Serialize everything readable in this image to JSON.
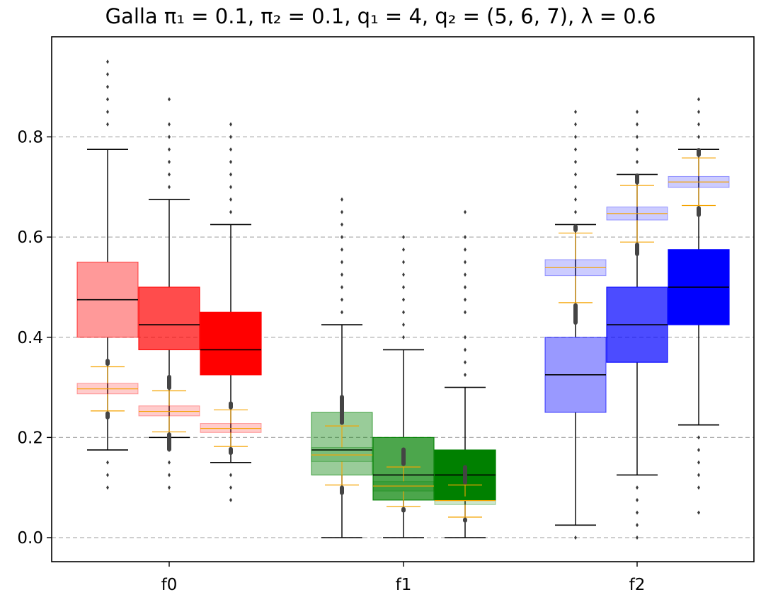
{
  "title": "Galla π₁ = 0.1,  π₂ = 0.1,  q₁ = 4,  q₂ = (5, 6, 7),  λ = 0.6",
  "chart_data": {
    "type": "box",
    "title": "Galla π₁ = 0.1,  π₂ = 0.1,  q₁ = 4,  q₂ = (5, 6, 7),  λ = 0.6",
    "xlabel": "",
    "ylabel": "",
    "categories": [
      "f0",
      "f1",
      "f2"
    ],
    "ylim": [
      -0.047,
      1.0
    ],
    "yticks": [
      0.0,
      0.2,
      0.4,
      0.6,
      0.8
    ],
    "ytick_labels": [
      "0.0",
      "0.2",
      "0.4",
      "0.6",
      "0.8"
    ],
    "grid": "horizontal dashed",
    "main_boxes": [
      {
        "category": "f0",
        "offset": -1,
        "color": "#ff0000",
        "alpha": 0.4,
        "whisker_low": 0.175,
        "q1": 0.4,
        "median": 0.475,
        "q3": 0.55,
        "whisker_high": 0.775,
        "outliers": [
          0.1,
          0.125,
          0.15,
          0.825,
          0.85,
          0.875,
          0.9,
          0.925,
          0.95
        ]
      },
      {
        "category": "f0",
        "offset": 0,
        "color": "#ff0000",
        "alpha": 0.7,
        "whisker_low": 0.2,
        "q1": 0.375,
        "median": 0.425,
        "q3": 0.5,
        "whisker_high": 0.675,
        "outliers": [
          0.1,
          0.125,
          0.15,
          0.175,
          0.7,
          0.725,
          0.75,
          0.775,
          0.8,
          0.825,
          0.875
        ]
      },
      {
        "category": "f0",
        "offset": 1,
        "color": "#ff0000",
        "alpha": 1.0,
        "whisker_low": 0.15,
        "q1": 0.325,
        "median": 0.375,
        "q3": 0.45,
        "whisker_high": 0.625,
        "outliers": [
          0.075,
          0.1,
          0.125,
          0.65,
          0.675,
          0.7,
          0.725,
          0.75,
          0.775,
          0.8,
          0.825
        ]
      },
      {
        "category": "f1",
        "offset": -1,
        "color": "#008000",
        "alpha": 0.4,
        "whisker_low": 0.0,
        "q1": 0.125,
        "median": 0.175,
        "q3": 0.25,
        "whisker_high": 0.425,
        "outliers": [
          0.45,
          0.475,
          0.5,
          0.525,
          0.55,
          0.575,
          0.6,
          0.625,
          0.65,
          0.675
        ]
      },
      {
        "category": "f1",
        "offset": 0,
        "color": "#008000",
        "alpha": 0.7,
        "whisker_low": 0.0,
        "q1": 0.075,
        "median": 0.125,
        "q3": 0.2,
        "whisker_high": 0.375,
        "outliers": [
          0.4,
          0.425,
          0.45,
          0.475,
          0.5,
          0.525,
          0.55,
          0.575,
          0.6
        ]
      },
      {
        "category": "f1",
        "offset": 1,
        "color": "#008000",
        "alpha": 1.0,
        "whisker_low": 0.0,
        "q1": 0.075,
        "median": 0.125,
        "q3": 0.175,
        "whisker_high": 0.3,
        "outliers": [
          0.325,
          0.35,
          0.375,
          0.4,
          0.45,
          0.475,
          0.5,
          0.525,
          0.55,
          0.575,
          0.6,
          0.65
        ]
      },
      {
        "category": "f2",
        "offset": -1,
        "color": "#0000ff",
        "alpha": 0.4,
        "whisker_low": 0.025,
        "q1": 0.25,
        "median": 0.325,
        "q3": 0.4,
        "whisker_high": 0.625,
        "outliers": [
          0.0,
          0.65,
          0.675,
          0.7,
          0.725,
          0.75,
          0.775,
          0.8,
          0.825,
          0.85
        ]
      },
      {
        "category": "f2",
        "offset": 0,
        "color": "#0000ff",
        "alpha": 0.7,
        "whisker_low": 0.125,
        "q1": 0.35,
        "median": 0.425,
        "q3": 0.5,
        "whisker_high": 0.725,
        "outliers": [
          0.0,
          0.025,
          0.05,
          0.075,
          0.1,
          0.75,
          0.775,
          0.8,
          0.825,
          0.85
        ]
      },
      {
        "category": "f2",
        "offset": 1,
        "color": "#0000ff",
        "alpha": 1.0,
        "whisker_low": 0.225,
        "q1": 0.425,
        "median": 0.5,
        "q3": 0.575,
        "whisker_high": 0.775,
        "outliers": [
          0.05,
          0.1,
          0.125,
          0.15,
          0.175,
          0.2,
          0.8,
          0.825,
          0.85,
          0.875
        ]
      }
    ],
    "inner_boxes": [
      {
        "category": "f0",
        "offset": -1,
        "color": "#ff0000",
        "whisker_low": 0.253,
        "q1": 0.287,
        "median": 0.297,
        "q3": 0.308,
        "whisker_high": 0.341,
        "outlier_low": [
          0.236,
          0.252
        ],
        "outlier_high": [
          0.343,
          0.357
        ]
      },
      {
        "category": "f0",
        "offset": 0,
        "color": "#ff0000",
        "whisker_low": 0.211,
        "q1": 0.243,
        "median": 0.252,
        "q3": 0.263,
        "whisker_high": 0.293,
        "outlier_low": [
          0.172,
          0.21
        ],
        "outlier_high": [
          0.295,
          0.325
        ]
      },
      {
        "category": "f0",
        "offset": 1,
        "color": "#ff0000",
        "whisker_low": 0.182,
        "q1": 0.21,
        "median": 0.218,
        "q3": 0.228,
        "whisker_high": 0.255,
        "outlier_low": [
          0.165,
          0.181
        ],
        "outlier_high": [
          0.256,
          0.272
        ]
      },
      {
        "category": "f1",
        "offset": -1,
        "color": "#008000",
        "whisker_low": 0.105,
        "q1": 0.152,
        "median": 0.165,
        "q3": 0.18,
        "whisker_high": 0.223,
        "outlier_low": [
          0.085,
          0.104
        ],
        "outlier_high": [
          0.225,
          0.285
        ]
      },
      {
        "category": "f1",
        "offset": 0,
        "color": "#008000",
        "whisker_low": 0.062,
        "q1": 0.093,
        "median": 0.103,
        "q3": 0.112,
        "whisker_high": 0.141,
        "outlier_low": [
          0.05,
          0.061
        ],
        "outlier_high": [
          0.143,
          0.18
        ]
      },
      {
        "category": "f1",
        "offset": 1,
        "color": "#008000",
        "whisker_low": 0.041,
        "q1": 0.066,
        "median": 0.074,
        "q3": 0.082,
        "whisker_high": 0.105,
        "outlier_low": [
          0.03,
          0.04
        ],
        "outlier_high": [
          0.106,
          0.145
        ]
      },
      {
        "category": "f2",
        "offset": -1,
        "color": "#0000ff",
        "whisker_low": 0.469,
        "q1": 0.523,
        "median": 0.539,
        "q3": 0.555,
        "whisker_high": 0.608,
        "outlier_low": [
          0.425,
          0.468
        ],
        "outlier_high": [
          0.61,
          0.625
        ]
      },
      {
        "category": "f2",
        "offset": 0,
        "color": "#0000ff",
        "whisker_low": 0.59,
        "q1": 0.634,
        "median": 0.647,
        "q3": 0.66,
        "whisker_high": 0.703,
        "outlier_low": [
          0.562,
          0.589
        ],
        "outlier_high": [
          0.705,
          0.727
        ]
      },
      {
        "category": "f2",
        "offset": 1,
        "color": "#0000ff",
        "whisker_low": 0.663,
        "q1": 0.699,
        "median": 0.71,
        "q3": 0.721,
        "whisker_high": 0.758,
        "outlier_low": [
          0.64,
          0.662
        ],
        "outlier_high": [
          0.76,
          0.778
        ]
      }
    ]
  }
}
